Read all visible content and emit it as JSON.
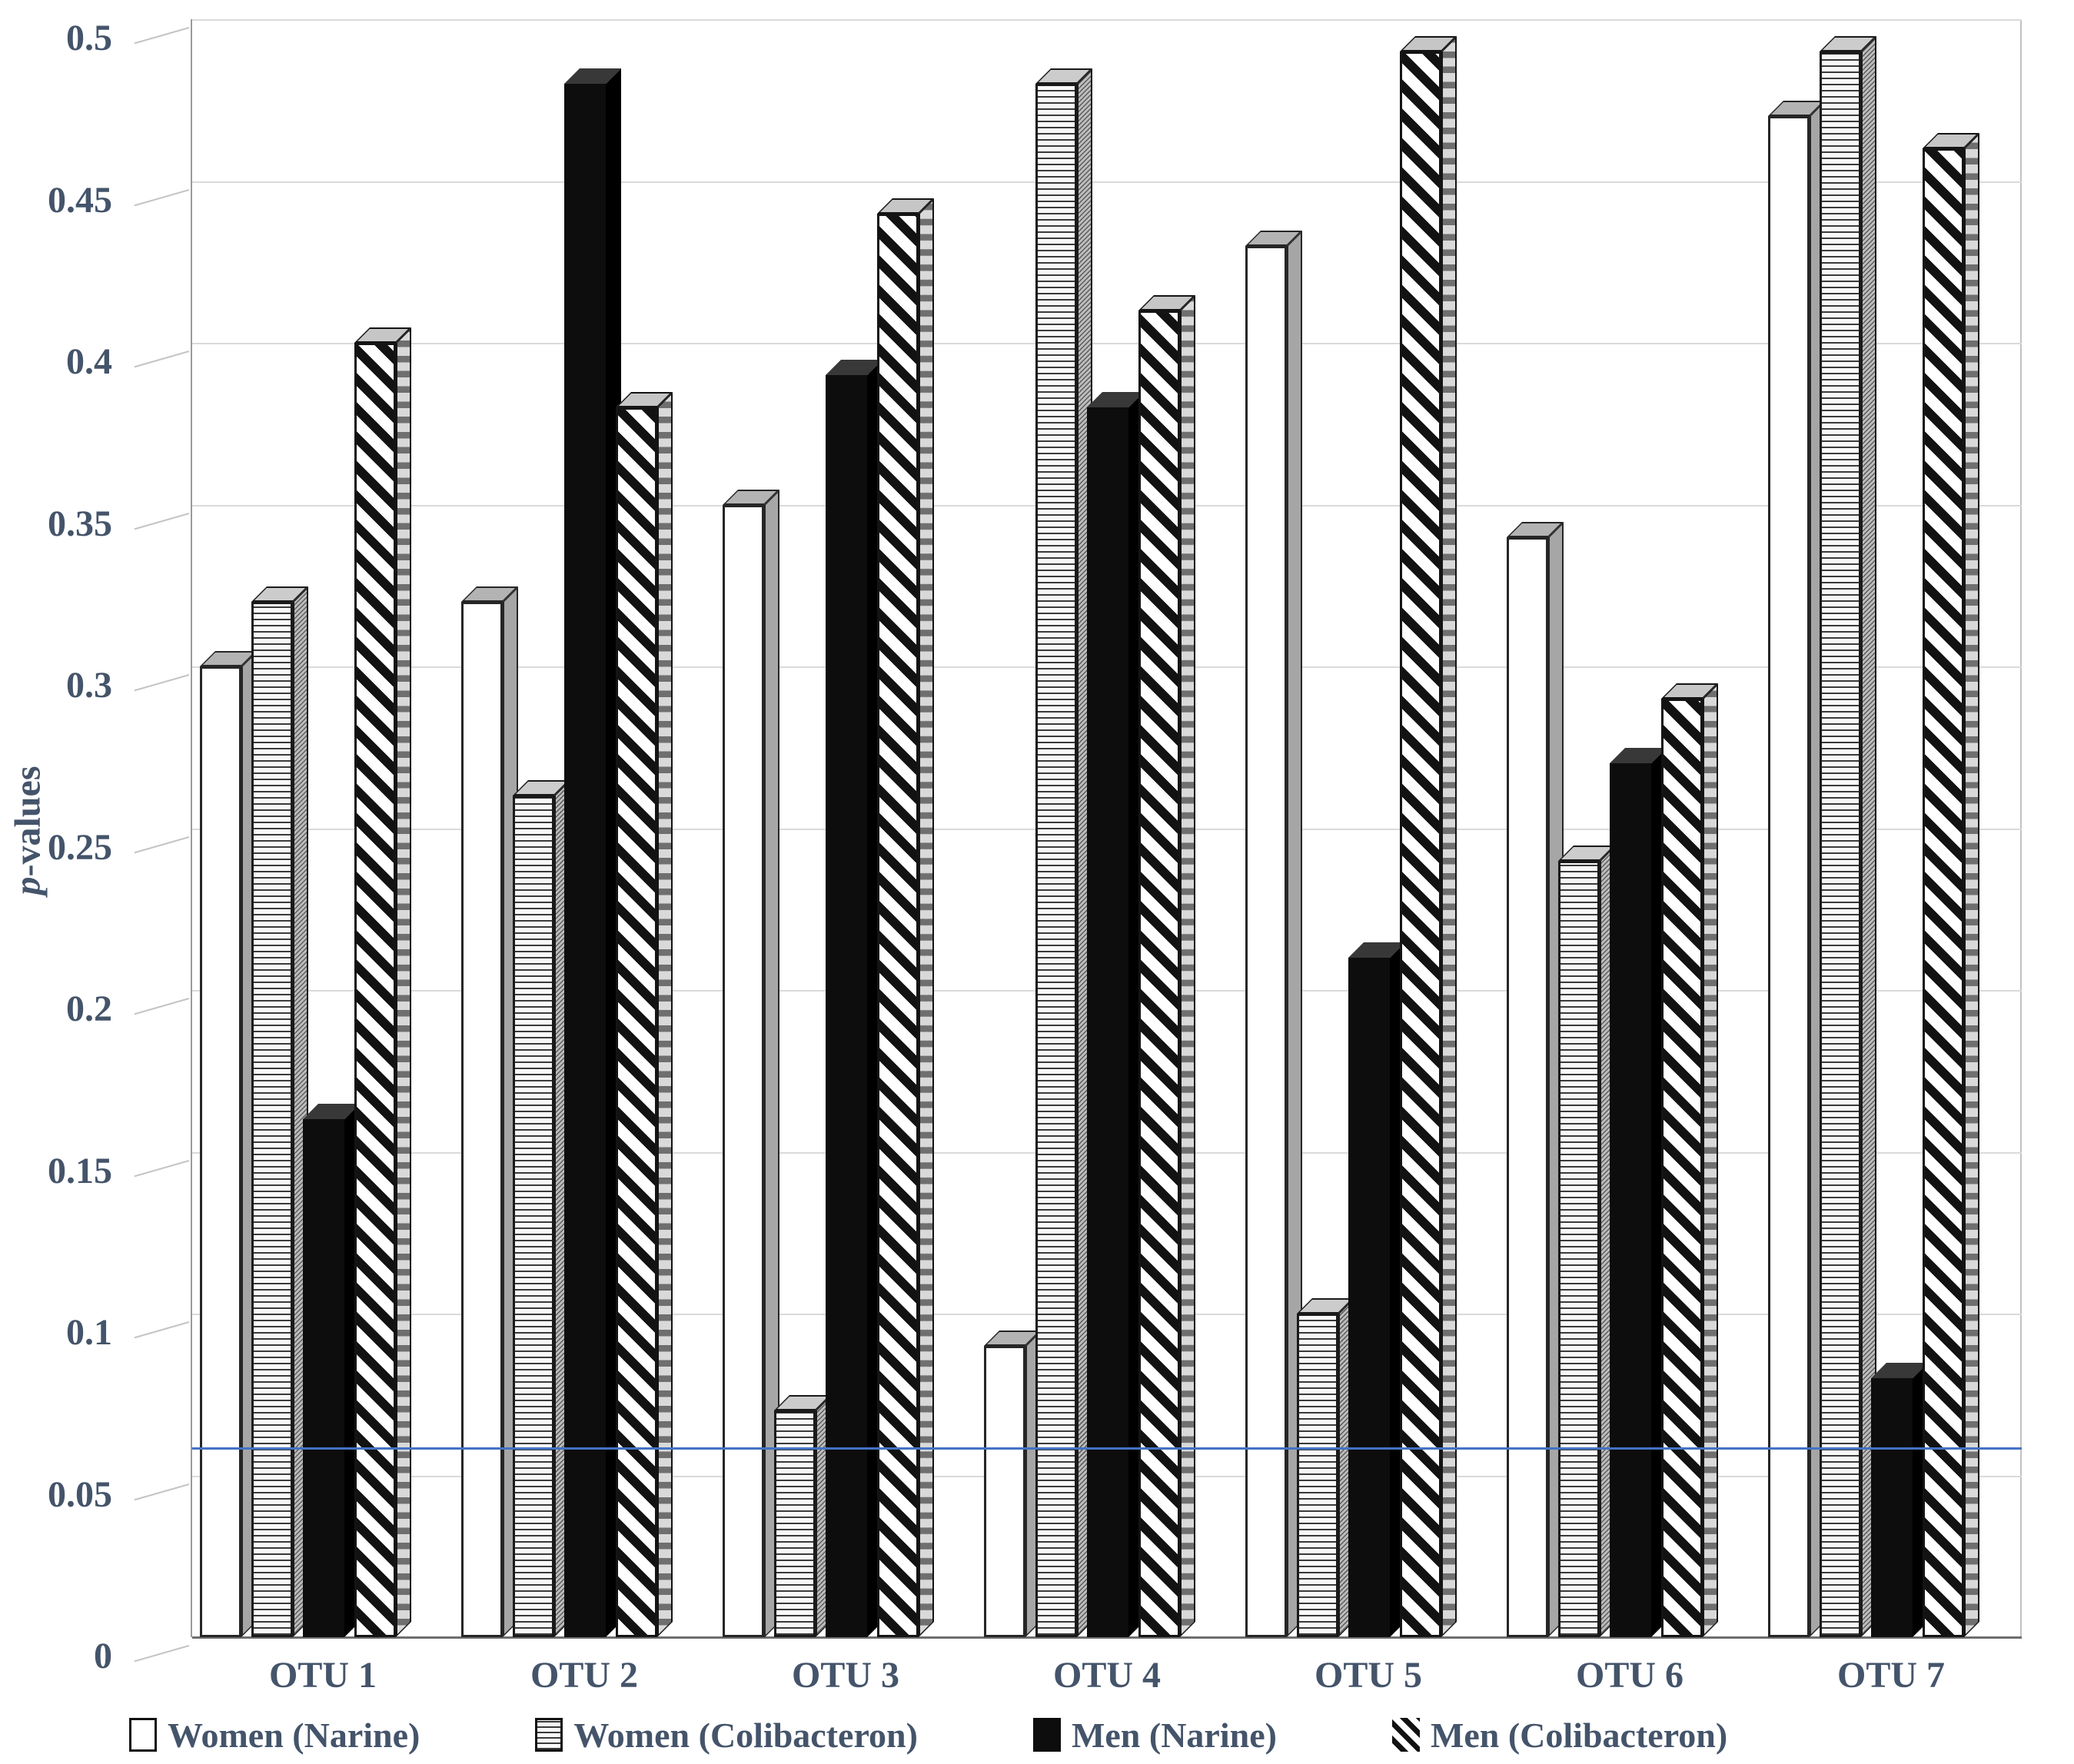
{
  "figure": {
    "ylabel_italic": "p",
    "ylabel_rest": "-values",
    "axis_text_color": "#44546A",
    "grid_color": "#DADADA",
    "background_color": "#FFFFFF"
  },
  "chart_data": {
    "type": "bar",
    "title": "",
    "xlabel": "",
    "ylabel": "p-values",
    "ylim": [
      0,
      0.5
    ],
    "grid": true,
    "legend_position": "bottom",
    "y_tick_labels": [
      "0.5",
      "0.45",
      "0.4",
      "0.35",
      "0.3",
      "0.25",
      "0.2",
      "0.15",
      "0.1",
      "0.05",
      "0"
    ],
    "categories": [
      "OTU 1",
      "OTU 2",
      "OTU 3",
      "OTU 4",
      "OTU 5",
      "OTU 6",
      "OTU 7"
    ],
    "series": [
      {
        "name": "Women (Narine)",
        "pattern": "plain-white",
        "values": [
          0.3,
          0.32,
          0.35,
          0.09,
          0.43,
          0.34,
          0.47
        ]
      },
      {
        "name": "Women (Colibacteron)",
        "pattern": "horizontal-wavy",
        "values": [
          0.32,
          0.26,
          0.07,
          0.48,
          0.1,
          0.24,
          0.49
        ]
      },
      {
        "name": "Men (Narine)",
        "pattern": "solid-black",
        "values": [
          0.16,
          0.48,
          0.39,
          0.38,
          0.21,
          0.27,
          0.08
        ]
      },
      {
        "name": "Men (Colibacteron)",
        "pattern": "diagonal-stripes",
        "values": [
          0.4,
          0.38,
          0.44,
          0.41,
          0.49,
          0.29,
          0.46
        ]
      }
    ],
    "reference_line": {
      "value": 0.058,
      "color": "#4472C4"
    }
  }
}
